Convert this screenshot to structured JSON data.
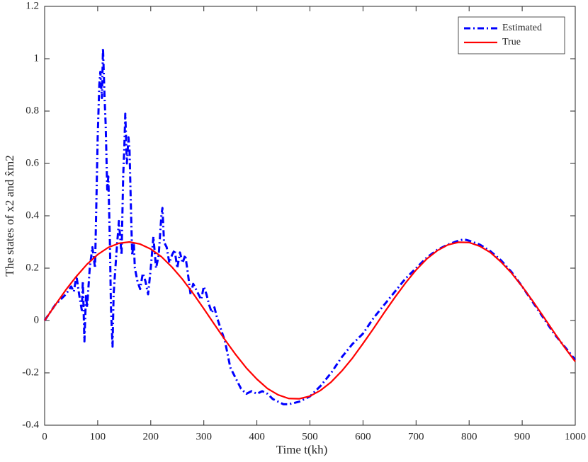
{
  "chart_data": {
    "type": "line",
    "xlabel": "Time t(kh)",
    "ylabel": "The states of x2 and x̂m2",
    "xlim": [
      0,
      1000
    ],
    "xticks": [
      0,
      100,
      200,
      300,
      400,
      500,
      600,
      700,
      800,
      900,
      1000
    ],
    "ylim": [
      -0.4,
      1.2
    ],
    "yticks": [
      -0.4,
      -0.2,
      0,
      0.2,
      0.4,
      0.6,
      0.8,
      1,
      1.2
    ],
    "grid": false,
    "legend": "northeast",
    "series": [
      {
        "name": "Estimated",
        "color": "#0000ff",
        "style": "dashdot",
        "x": [
          0,
          10,
          20,
          30,
          40,
          50,
          55,
          60,
          65,
          70,
          72,
          75,
          78,
          80,
          85,
          90,
          95,
          100,
          103,
          105,
          108,
          110,
          113,
          115,
          118,
          120,
          123,
          125,
          128,
          130,
          135,
          140,
          145,
          148,
          150,
          152,
          155,
          158,
          160,
          163,
          165,
          168,
          170,
          175,
          180,
          185,
          190,
          195,
          200,
          205,
          210,
          215,
          220,
          222,
          225,
          230,
          235,
          240,
          245,
          250,
          255,
          260,
          265,
          270,
          275,
          280,
          285,
          290,
          295,
          300,
          305,
          310,
          315,
          320,
          325,
          330,
          340,
          350,
          360,
          370,
          380,
          390,
          400,
          410,
          420,
          430,
          440,
          450,
          460,
          470,
          480,
          500,
          520,
          540,
          560,
          580,
          600,
          620,
          640,
          660,
          680,
          700,
          720,
          740,
          760,
          780,
          790,
          800,
          820,
          840,
          860,
          880,
          900,
          920,
          940,
          960,
          980,
          1000
        ],
        "values": [
          0,
          0.03,
          0.06,
          0.08,
          0.1,
          0.13,
          0.11,
          0.17,
          0.1,
          0.04,
          0.15,
          -0.08,
          0.1,
          0.05,
          0.2,
          0.28,
          0.2,
          0.7,
          0.9,
          0.95,
          0.85,
          1.04,
          0.85,
          0.75,
          0.5,
          0.55,
          0.3,
          0.05,
          -0.1,
          0.1,
          0.25,
          0.38,
          0.25,
          0.55,
          0.65,
          0.79,
          0.6,
          0.7,
          0.65,
          0.4,
          0.25,
          0.3,
          0.2,
          0.15,
          0.12,
          0.18,
          0.15,
          0.1,
          0.2,
          0.32,
          0.2,
          0.25,
          0.4,
          0.43,
          0.3,
          0.28,
          0.22,
          0.25,
          0.27,
          0.2,
          0.26,
          0.22,
          0.25,
          0.18,
          0.1,
          0.14,
          0.12,
          0.1,
          0.08,
          0.13,
          0.1,
          0.06,
          0.03,
          0.05,
          0.01,
          -0.02,
          -0.08,
          -0.18,
          -0.22,
          -0.26,
          -0.28,
          -0.27,
          -0.28,
          -0.27,
          -0.28,
          -0.3,
          -0.31,
          -0.32,
          -0.32,
          -0.315,
          -0.31,
          -0.29,
          -0.25,
          -0.2,
          -0.14,
          -0.09,
          -0.05,
          0.01,
          0.06,
          0.11,
          0.16,
          0.2,
          0.24,
          0.27,
          0.29,
          0.305,
          0.31,
          0.305,
          0.29,
          0.265,
          0.23,
          0.185,
          0.13,
          0.07,
          0.01,
          -0.05,
          -0.1,
          -0.15
        ]
      },
      {
        "name": "True",
        "color": "#ff0000",
        "style": "solid",
        "x": [
          0,
          20,
          40,
          60,
          80,
          100,
          120,
          140,
          160,
          180,
          200,
          220,
          240,
          260,
          280,
          300,
          320,
          340,
          360,
          380,
          400,
          420,
          440,
          460,
          480,
          500,
          520,
          540,
          560,
          580,
          600,
          620,
          640,
          660,
          680,
          700,
          720,
          740,
          760,
          780,
          800,
          820,
          840,
          860,
          880,
          900,
          920,
          940,
          960,
          980,
          1000
        ],
        "values": [
          0,
          0.059,
          0.117,
          0.169,
          0.215,
          0.252,
          0.279,
          0.295,
          0.3,
          0.292,
          0.273,
          0.244,
          0.204,
          0.157,
          0.103,
          0.045,
          -0.015,
          -0.074,
          -0.13,
          -0.181,
          -0.224,
          -0.26,
          -0.284,
          -0.298,
          -0.299,
          -0.289,
          -0.267,
          -0.235,
          -0.193,
          -0.144,
          -0.088,
          -0.03,
          0.03,
          0.088,
          0.143,
          0.193,
          0.235,
          0.267,
          0.289,
          0.299,
          0.298,
          0.284,
          0.26,
          0.224,
          0.181,
          0.13,
          0.074,
          0.015,
          -0.045,
          -0.103,
          -0.157
        ]
      }
    ]
  }
}
